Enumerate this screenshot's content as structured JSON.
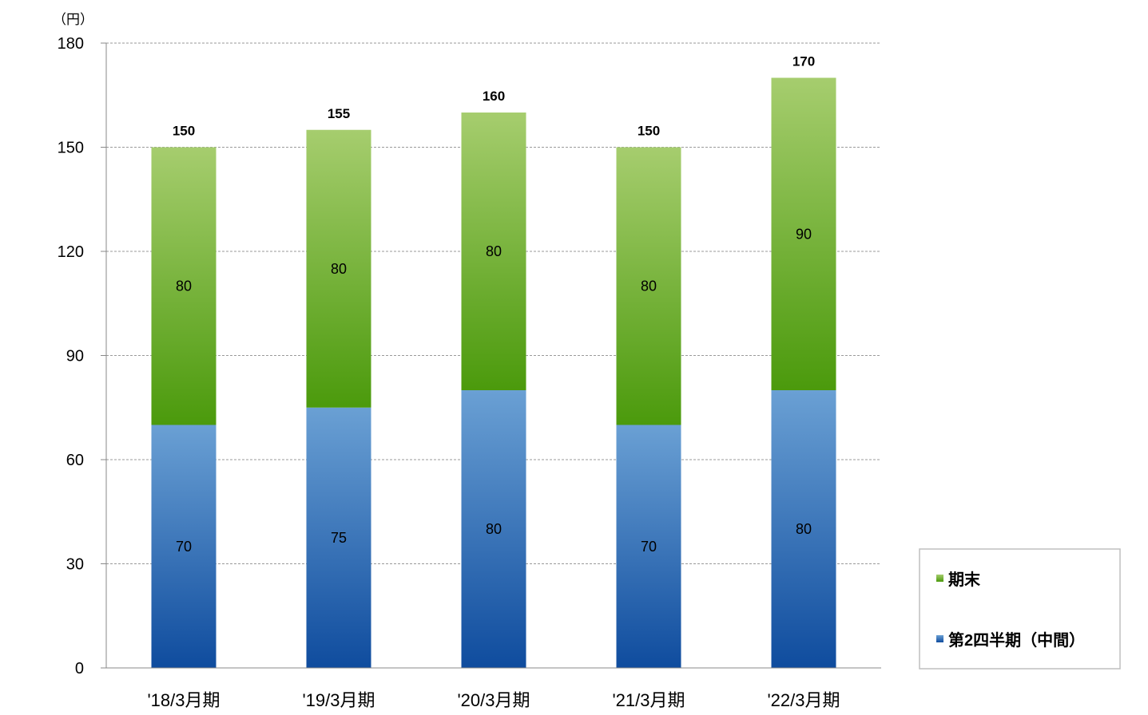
{
  "chart_data": {
    "type": "bar",
    "stacked": true,
    "unit_label": "（円）",
    "categories": [
      "'18/3月期",
      "'19/3月期",
      "'20/3月期",
      "'21/3月期",
      "'22/3月期"
    ],
    "series": [
      {
        "name": "第2四半期（中間）",
        "values": [
          70,
          75,
          80,
          70,
          80
        ],
        "color_top": "#6aa0d4",
        "color_bottom": "#0f4c9e"
      },
      {
        "name": "期末",
        "values": [
          80,
          80,
          80,
          80,
          90
        ],
        "color_top": "#a6cd6e",
        "color_bottom": "#4b9a0c"
      }
    ],
    "totals": [
      150,
      155,
      160,
      150,
      170
    ],
    "ylim": [
      0,
      180
    ],
    "yticks": [
      0,
      30,
      60,
      90,
      120,
      150,
      180
    ],
    "grid": true,
    "legend_position": "bottom-right",
    "legend_order": [
      "期末",
      "第2四半期（中間）"
    ]
  }
}
